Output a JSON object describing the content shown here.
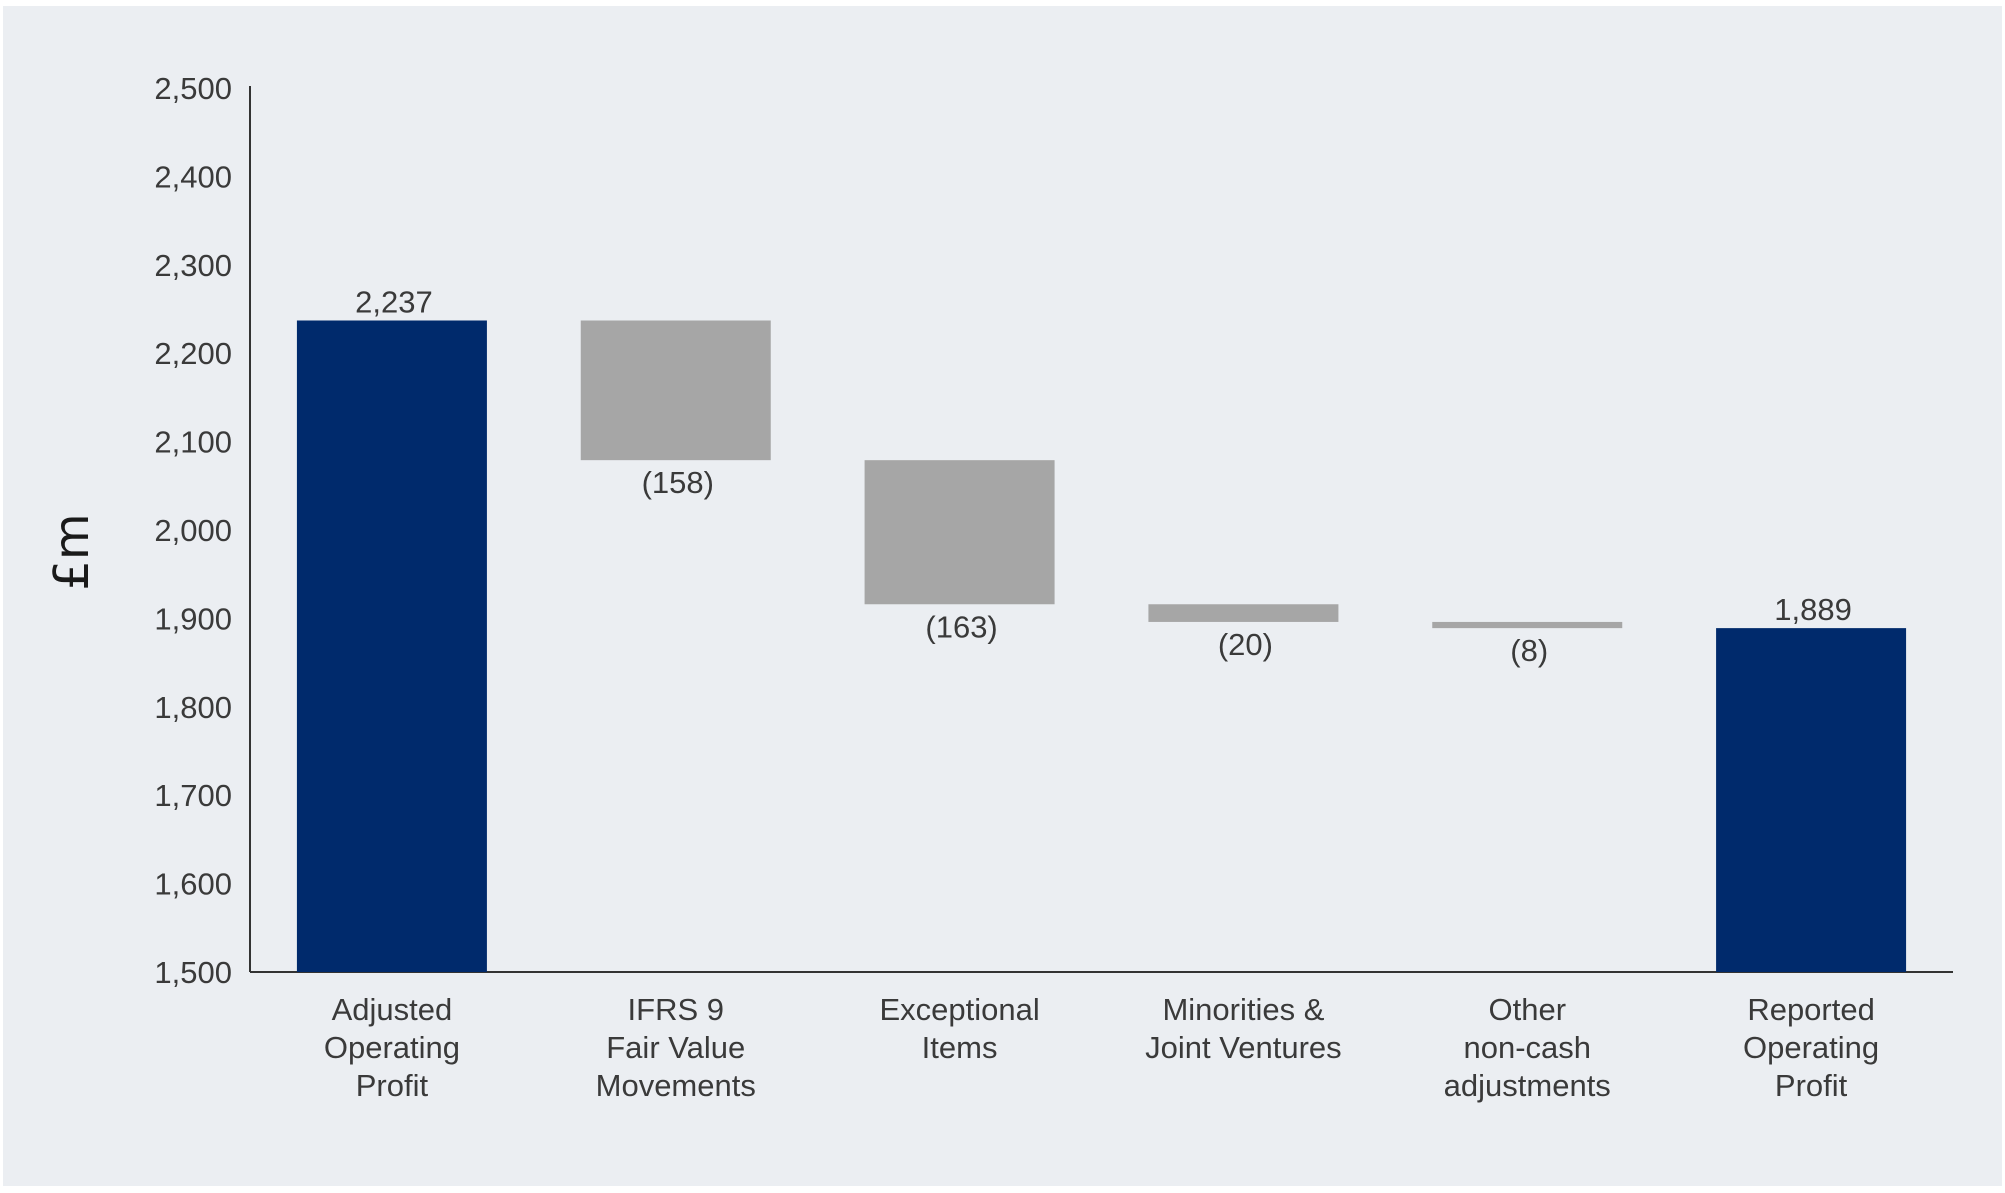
{
  "chart_data": {
    "type": "bar",
    "subtype": "waterfall",
    "title": "",
    "xlabel": "",
    "ylabel": "£m",
    "ylim": [
      1500,
      2500
    ],
    "yticks": [
      1500,
      1600,
      1700,
      1800,
      1900,
      2000,
      2100,
      2200,
      2300,
      2400,
      2500
    ],
    "ytick_labels": [
      "1,500",
      "1,600",
      "1,700",
      "1,800",
      "1,900",
      "2,000",
      "2,100",
      "2,200",
      "2,300",
      "2,400",
      "2,500"
    ],
    "grid": false,
    "categories": [
      [
        "Adjusted",
        "Operating",
        "Profit"
      ],
      [
        "IFRS 9",
        "Fair Value",
        "Movements"
      ],
      [
        "Exceptional",
        "Items"
      ],
      [
        "Minorities &",
        "Joint Ventures"
      ],
      [
        "Other",
        "non-cash",
        "adjustments"
      ],
      [
        "Reported",
        "Operating",
        "Profit"
      ]
    ],
    "bars": [
      {
        "kind": "total",
        "start": 1500,
        "end": 2237,
        "label": "2,237"
      },
      {
        "kind": "change",
        "start": 2237,
        "end": 2079,
        "label": "(158)"
      },
      {
        "kind": "change",
        "start": 2079,
        "end": 1916,
        "label": "(163)"
      },
      {
        "kind": "change",
        "start": 1916,
        "end": 1896,
        "label": "(20)"
      },
      {
        "kind": "change",
        "start": 1896,
        "end": 1889,
        "label": "(8)"
      },
      {
        "kind": "total",
        "start": 1500,
        "end": 1889,
        "label": "1,889"
      }
    ],
    "colors": {
      "total": "#002a6c",
      "change": "#a6a6a6",
      "background": "#ebeef2",
      "axis": "#333333"
    }
  }
}
